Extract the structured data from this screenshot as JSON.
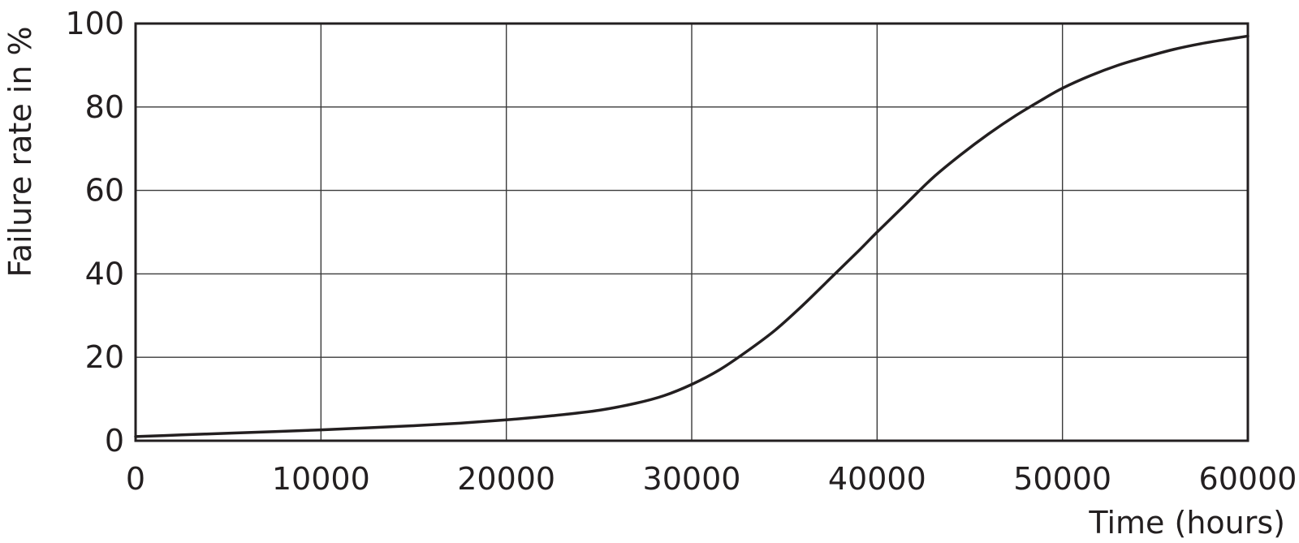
{
  "chart_data": {
    "type": "line",
    "xlabel": "Time (hours)",
    "ylabel": "Failure rate in %",
    "xlim": [
      0,
      60000
    ],
    "ylim": [
      0,
      100
    ],
    "xticks": [
      "0",
      "10000",
      "20000",
      "30000",
      "40000",
      "50000",
      "60000"
    ],
    "yticks": [
      "0",
      "20",
      "40",
      "60",
      "80",
      "100"
    ],
    "grid": true,
    "series": [
      {
        "color": "#231f20",
        "x": [
          0,
          2500,
          5000,
          7500,
          10000,
          12500,
          15000,
          17500,
          20000,
          22500,
          25000,
          27000,
          28500,
          30000,
          31500,
          33000,
          34500,
          36000,
          37500,
          39000,
          40000,
          41500,
          43000,
          44500,
          46000,
          47500,
          49000,
          50000,
          51500,
          53000,
          54500,
          56000,
          57500,
          59000,
          60000
        ],
        "y": [
          1,
          1.4,
          1.8,
          2.2,
          2.6,
          3.1,
          3.6,
          4.2,
          5,
          6,
          7.3,
          9,
          10.8,
          13.5,
          17,
          21.5,
          26.5,
          32.5,
          39,
          45.5,
          50,
          56.5,
          63,
          68.5,
          73.5,
          78,
          82,
          84.5,
          87.5,
          90,
          92,
          93.8,
          95.2,
          96.3,
          97
        ]
      }
    ]
  }
}
